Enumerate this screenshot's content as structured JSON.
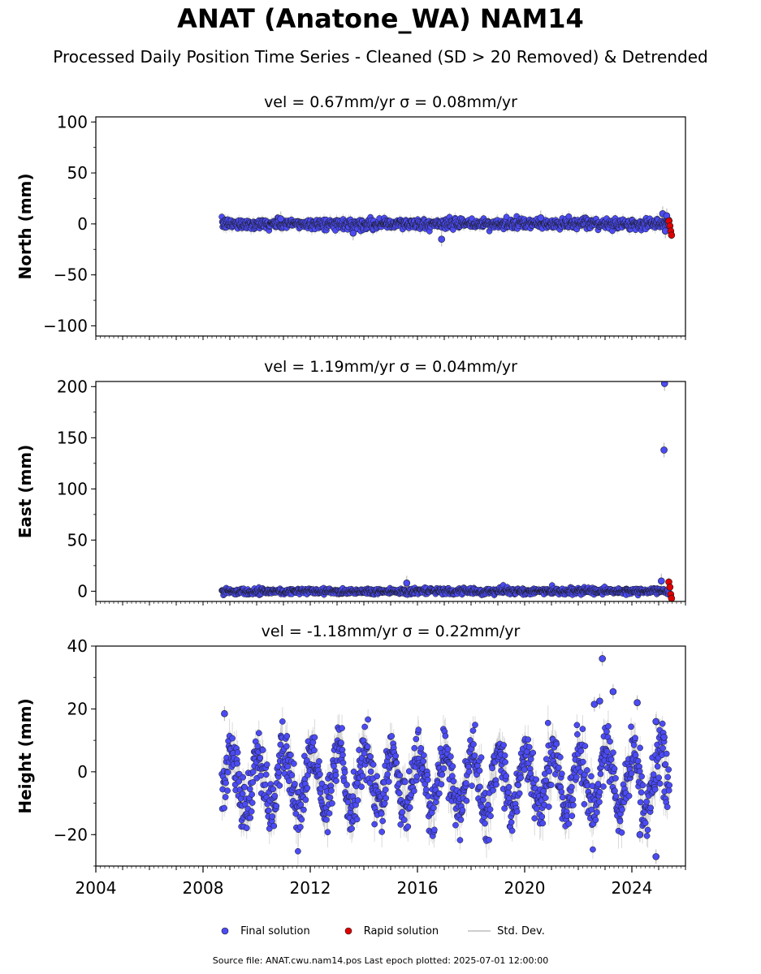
{
  "title": "ANAT (Anatone_WA) NAM14",
  "subtitle": "Processed Daily Position Time Series - Cleaned (SD > 20 Removed) & Detrended",
  "footer": "Source file: ANAT.cwu.nam14.pos  Last epoch plotted: 2025-07-01 12:00:00",
  "colors": {
    "final": "#4b4bf5",
    "rapid": "#e00000",
    "stddev": "#bdbdbd",
    "edge": "#1a1a1a"
  },
  "legend": [
    {
      "label": "Final solution",
      "marker": "circle",
      "color": "#4b4bf5"
    },
    {
      "label": "Rapid solution",
      "marker": "circle",
      "color": "#e00000"
    },
    {
      "label": "Std. Dev.",
      "marker": "line",
      "color": "#bdbdbd"
    }
  ],
  "chart_data": [
    {
      "type": "scatter",
      "component": "North",
      "panel_title": "vel = 0.67mm/yr   σ = 0.08mm/yr",
      "ylabel": "North (mm)",
      "xlim": [
        2004.0,
        2026.0
      ],
      "ylim": [
        -110,
        105
      ],
      "yticks": [
        -100,
        -50,
        0,
        50,
        100
      ],
      "ytick_labels": [
        "−100",
        "−50",
        "0",
        "50",
        "100"
      ],
      "show_xtick_labels": false,
      "series": [
        {
          "name": "Final solution",
          "time_range": [
            2008.7,
            2025.4
          ],
          "typical_spread_mm": 2.5,
          "typical_sigma_mm": 4,
          "seasonal_amplitude_mm": 0,
          "x": [
            2010.9,
            2013.6,
            2016.9,
            2020.6,
            2025.15,
            2025.3,
            2025.25
          ],
          "values": [
            5,
            -9,
            -15,
            6,
            10,
            8,
            -7
          ]
        },
        {
          "name": "Rapid solution",
          "time_range": [
            2025.35,
            2025.5
          ],
          "x": [
            2025.38,
            2025.42,
            2025.45,
            2025.48
          ],
          "values": [
            3,
            -2,
            -7,
            -11
          ]
        }
      ]
    },
    {
      "type": "scatter",
      "component": "East",
      "panel_title": "vel = 1.19mm/yr   σ = 0.04mm/yr",
      "ylabel": "East (mm)",
      "xlim": [
        2004.0,
        2026.0
      ],
      "ylim": [
        -10,
        205
      ],
      "yticks": [
        0,
        50,
        100,
        150,
        200
      ],
      "ytick_labels": [
        "0",
        "50",
        "100",
        "150",
        "200"
      ],
      "show_xtick_labels": false,
      "series": [
        {
          "name": "Final solution",
          "time_range": [
            2008.7,
            2025.4
          ],
          "typical_spread_mm": 1.5,
          "typical_sigma_mm": 3,
          "seasonal_amplitude_mm": 0,
          "x": [
            2015.6,
            2025.2,
            2025.22,
            2025.1
          ],
          "values": [
            8,
            138,
            203,
            10
          ]
        },
        {
          "name": "Rapid solution",
          "time_range": [
            2025.35,
            2025.5
          ],
          "x": [
            2025.38,
            2025.42,
            2025.45,
            2025.48
          ],
          "values": [
            9,
            4,
            -3,
            -7
          ]
        }
      ]
    },
    {
      "type": "scatter",
      "component": "Height",
      "panel_title": "vel = -1.18mm/yr   σ = 0.22mm/yr",
      "ylabel": "Height (mm)",
      "xlim": [
        2004.0,
        2026.0
      ],
      "ylim": [
        -30,
        40
      ],
      "yticks": [
        -20,
        0,
        20,
        40
      ],
      "ytick_labels": [
        "−20",
        "0",
        "20",
        "40"
      ],
      "xticks": [
        2004,
        2008,
        2012,
        2016,
        2020,
        2024
      ],
      "xtick_labels": [
        "2004",
        "2008",
        "2012",
        "2016",
        "2020",
        "2024"
      ],
      "show_xtick_labels": true,
      "series": [
        {
          "name": "Final solution",
          "time_range": [
            2008.7,
            2025.4
          ],
          "typical_spread_mm": 4.5,
          "typical_sigma_mm": 4,
          "seasonal_amplitude_mm": 9,
          "x": [
            2008.8,
            2022.9,
            2023.3,
            2022.6,
            2022.8,
            2024.2,
            2024.9,
            2024.9,
            2024.3,
            2025.2
          ],
          "values": [
            18.5,
            36,
            25.5,
            21.5,
            22.5,
            22,
            16,
            -27,
            -20,
            11
          ]
        }
      ]
    }
  ]
}
